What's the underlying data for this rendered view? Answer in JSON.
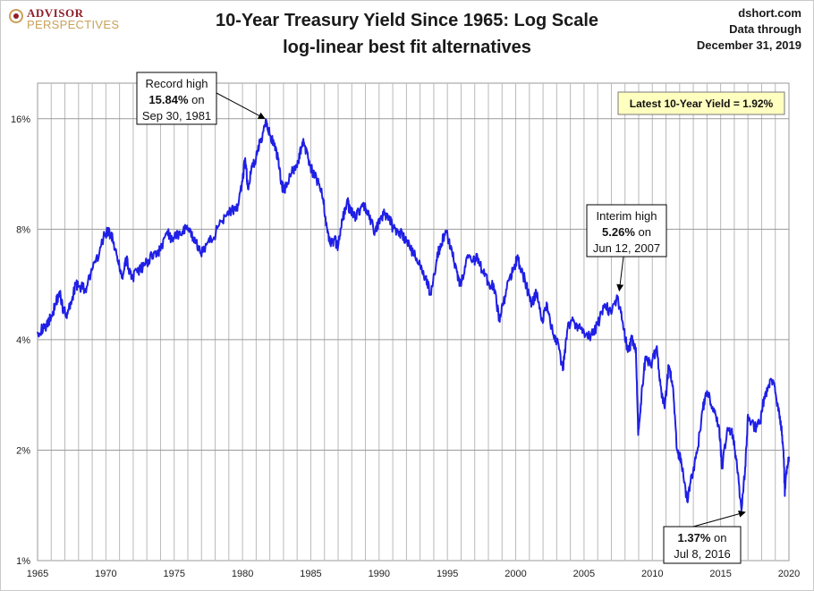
{
  "header": {
    "logo_line1": "ADVISOR",
    "logo_line2": "PERSPECTIVES",
    "title": "10-Year Treasury Yield Since 1965: Log Scale",
    "subtitle": "log-linear best fit alternatives",
    "source_line1": "dshort.com",
    "source_line2": "Data through",
    "source_line3": "December 31, 2019"
  },
  "chart_data": {
    "type": "line",
    "title": "10-Year Treasury Yield Since 1965: Log Scale",
    "subtitle": "log-linear best fit alternatives",
    "y_scale": "log2",
    "ylim": [
      1,
      20
    ],
    "xlim": [
      1965,
      2020
    ],
    "y_ticks": [
      1,
      2,
      4,
      8,
      16
    ],
    "y_tick_labels": [
      "1%",
      "2%",
      "4%",
      "8%",
      "16%"
    ],
    "x_ticks": [
      1965,
      1970,
      1975,
      1980,
      1985,
      1990,
      1995,
      2000,
      2005,
      2010,
      2015,
      2020
    ],
    "x_tick_labels": [
      "1965",
      "1970",
      "1975",
      "1980",
      "1985",
      "1990",
      "1995",
      "2000",
      "2005",
      "2010",
      "2015",
      "2020"
    ],
    "grid": true,
    "line_color": "#1f1fe6",
    "series": [
      {
        "x": [
          1965.0,
          1965.5,
          1966.0,
          1966.3,
          1966.6,
          1966.9,
          1967.2,
          1967.5,
          1967.8,
          1968.0,
          1968.5,
          1969.0,
          1969.5,
          1969.9,
          1970.2,
          1970.5,
          1970.9,
          1971.2,
          1971.5,
          1971.9,
          1972.3,
          1972.7,
          1973.1,
          1973.6,
          1974.0,
          1974.5,
          1974.9,
          1975.4,
          1975.9,
          1976.4,
          1976.9,
          1977.4,
          1977.9,
          1978.4,
          1978.9,
          1979.3,
          1979.7,
          1980.0,
          1980.2,
          1980.4,
          1980.7,
          1981.0,
          1981.3,
          1981.75,
          1982.0,
          1982.3,
          1982.6,
          1982.9,
          1983.2,
          1983.6,
          1984.0,
          1984.3,
          1984.5,
          1984.8,
          1985.1,
          1985.5,
          1985.9,
          1986.2,
          1986.4,
          1986.7,
          1987.0,
          1987.3,
          1987.7,
          1987.9,
          1988.3,
          1988.7,
          1989.0,
          1989.3,
          1989.7,
          1990.0,
          1990.4,
          1990.7,
          1991.0,
          1991.5,
          1992.0,
          1992.5,
          1993.0,
          1993.4,
          1993.8,
          1994.2,
          1994.5,
          1994.9,
          1995.3,
          1995.7,
          1996.0,
          1996.4,
          1996.8,
          1997.2,
          1997.6,
          1998.0,
          1998.4,
          1998.8,
          1999.1,
          1999.5,
          1999.9,
          2000.1,
          2000.5,
          2000.9,
          2001.2,
          2001.5,
          2001.9,
          2002.3,
          2002.7,
          2003.0,
          2003.45,
          2003.8,
          2004.2,
          2004.6,
          2005.0,
          2005.5,
          2006.0,
          2006.5,
          2007.0,
          2007.45,
          2007.8,
          2008.2,
          2008.5,
          2008.8,
          2008.97,
          2009.2,
          2009.5,
          2009.9,
          2010.3,
          2010.6,
          2010.9,
          2011.2,
          2011.5,
          2011.8,
          2012.1,
          2012.55,
          2012.9,
          2013.3,
          2013.7,
          2014.0,
          2014.5,
          2014.9,
          2015.1,
          2015.5,
          2015.9,
          2016.2,
          2016.52,
          2016.8,
          2017.0,
          2017.5,
          2017.9,
          2018.2,
          2018.5,
          2018.85,
          2019.1,
          2019.4,
          2019.6,
          2019.7,
          2019.85,
          2020.0
        ],
        "y": [
          4.2,
          4.3,
          4.6,
          5.0,
          5.4,
          4.8,
          4.7,
          5.1,
          5.7,
          5.6,
          5.5,
          6.2,
          6.8,
          7.8,
          7.9,
          7.5,
          6.5,
          5.9,
          6.6,
          5.9,
          6.1,
          6.3,
          6.6,
          6.9,
          7.0,
          7.9,
          7.4,
          7.9,
          8.0,
          7.6,
          6.9,
          7.3,
          7.6,
          8.4,
          8.9,
          9.0,
          9.3,
          10.8,
          12.5,
          10.3,
          11.8,
          12.6,
          13.8,
          15.84,
          14.5,
          13.5,
          12.5,
          10.4,
          10.4,
          11.4,
          11.8,
          13.4,
          13.8,
          12.5,
          11.5,
          10.8,
          9.7,
          8.0,
          7.3,
          7.5,
          7.2,
          8.5,
          9.5,
          8.9,
          8.7,
          9.2,
          9.2,
          8.5,
          7.9,
          8.3,
          8.8,
          8.7,
          8.1,
          7.9,
          7.4,
          6.9,
          6.4,
          5.9,
          5.3,
          6.6,
          7.3,
          7.9,
          7.1,
          6.1,
          5.6,
          6.7,
          6.5,
          6.7,
          6.1,
          5.7,
          5.6,
          4.5,
          5.0,
          5.8,
          6.3,
          6.7,
          6.1,
          5.4,
          5.0,
          5.4,
          4.5,
          5.0,
          4.2,
          4.0,
          3.3,
          4.3,
          4.5,
          4.3,
          4.2,
          4.1,
          4.4,
          5.0,
          4.7,
          5.26,
          4.5,
          3.7,
          4.0,
          3.8,
          2.2,
          2.8,
          3.6,
          3.4,
          3.8,
          3.0,
          2.6,
          3.4,
          3.0,
          2.0,
          1.9,
          1.45,
          1.7,
          2.0,
          2.6,
          2.9,
          2.6,
          2.3,
          1.8,
          2.3,
          2.2,
          1.8,
          1.37,
          1.8,
          2.5,
          2.3,
          2.4,
          2.8,
          3.0,
          3.1,
          2.7,
          2.4,
          2.0,
          1.5,
          1.8,
          1.92
        ]
      }
    ],
    "annotations": [
      {
        "id": "record",
        "lines": [
          "Record high",
          "15.84% on",
          "Sep 30, 1981"
        ],
        "bold": "15.84%",
        "x": 1981.75,
        "y": 15.84
      },
      {
        "id": "interim",
        "lines": [
          "Interim high",
          "5.26% on",
          "Jun 12, 2007"
        ],
        "bold": "5.26%",
        "x": 2007.45,
        "y": 5.26
      },
      {
        "id": "low",
        "lines": [
          "1.37% on",
          "Jul 8, 2016"
        ],
        "bold": "1.37%",
        "x": 2016.52,
        "y": 1.37
      }
    ],
    "latest_label": "Latest 10-Year Yield = 1.92%"
  }
}
